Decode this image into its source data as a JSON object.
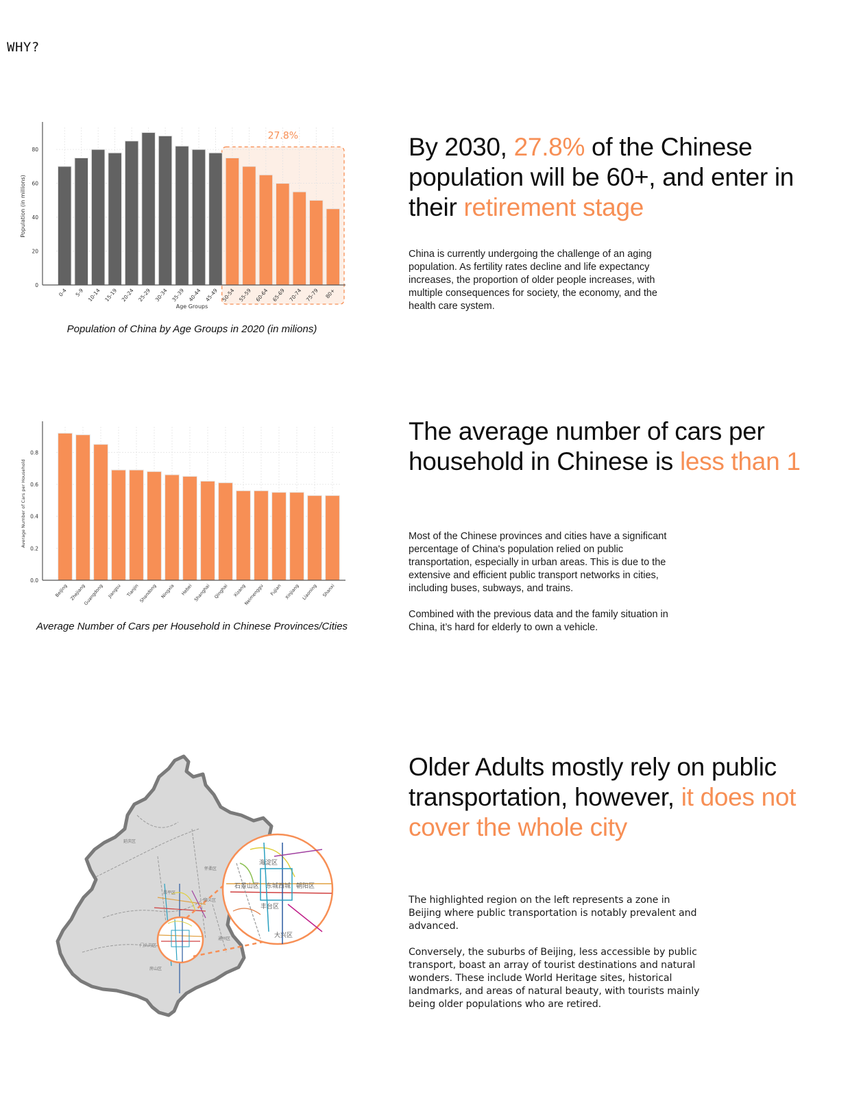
{
  "page": {
    "section_label": "WHY?"
  },
  "colors": {
    "accent": "#f78f55",
    "dark_bar": "#626262",
    "text": "#0d0d0d",
    "highlight_fill": "#fdefe6",
    "map_fill": "#d9d9d9",
    "map_outline": "#7a7a7a"
  },
  "section1": {
    "heading_parts": [
      {
        "text": "By 2030, ",
        "accent": false
      },
      {
        "text": "27.8%",
        "accent": true
      },
      {
        "text": " of the Chinese population will be 60+, and enter in their ",
        "accent": false
      },
      {
        "text": "retirement stage",
        "accent": true
      }
    ],
    "body": "China is currently undergoing the challenge of an aging population. As fertility rates decline and life expectancy increases, the proportion of older people increases, with multiple consequences for society, the economy, and the health care system.",
    "caption": "Population of China by Age Groups in 2020 (in milions)"
  },
  "section2": {
    "heading_parts": [
      {
        "text": "The average number of cars per household in Chinese is ",
        "accent": false
      },
      {
        "text": "less than 1",
        "accent": true
      }
    ],
    "body_paragraphs": [
      "Most of the Chinese provinces and cities have a significant percentage of China's population relied on public transportation, especially in urban areas. This is due to the extensive and efficient public transport networks in cities, including buses, subways, and trains.",
      "Combined with the previous data and the family situation in China, it’s hard for elderly to own a vehicle."
    ],
    "caption": "Average Number of Cars per Household in Chinese Provinces/Cities"
  },
  "section3": {
    "heading_parts": [
      {
        "text": "Older Adults mostly rely on public transportation, however, ",
        "accent": false
      },
      {
        "text": "it does not cover the whole city",
        "accent": true
      }
    ],
    "body_paragraphs": [
      "The highlighted region on the left represents a zone in Beijing where public transportation is notably prevalent and advanced.",
      "Conversely, the suburbs of Beijing, less accessible by public transport, boast an array of tourist destinations and natural wonders. These include World Heritage sites, historical landmarks, and areas of natural beauty, with tourists mainly being older populations who are retired."
    ],
    "map": {
      "alt": "Map of Beijing with the central transit zone highlighted and magnified",
      "district_labels": [
        "海淀区",
        "石景山区",
        "东城西城",
        "朝阳区",
        "丰台区",
        "大兴区",
        "门头沟区",
        "昌平区",
        "顺义区",
        "通州区",
        "房山区",
        "怀柔区",
        "延庆区"
      ]
    }
  },
  "chart_data": [
    {
      "type": "bar",
      "title": "Population of China by Age Groups in 2020 (in milions)",
      "xlabel": "Age Groups",
      "ylabel": "Population (in millions)",
      "categories": [
        "0-4",
        "5-9",
        "10-14",
        "15-19",
        "20-24",
        "25-29",
        "30-34",
        "35-39",
        "40-44",
        "45-49",
        "50-54",
        "55-59",
        "60-64",
        "65-69",
        "70-74",
        "75-79",
        "80+"
      ],
      "values": [
        70,
        75,
        80,
        78,
        85,
        90,
        88,
        82,
        80,
        78,
        75,
        70,
        65,
        60,
        55,
        50,
        45
      ],
      "highlight_from_index": 10,
      "highlight_label": "27.8%",
      "ylim": [
        0,
        93
      ],
      "yticks": [
        0,
        20,
        40,
        60,
        80
      ],
      "grid": true
    },
    {
      "type": "bar",
      "title": "Average Number of Cars per Household in Chinese Provinces/Cities",
      "xlabel": "",
      "ylabel": "Average Number of Cars per Household",
      "categories": [
        "Beijing",
        "Zhejiang",
        "Guangdong",
        "Jiangsu",
        "Tianjin",
        "Shandong",
        "Ningxia",
        "Hebei",
        "Shanghai",
        "Qinghai",
        "Xizang",
        "Neimenggu",
        "Fujian",
        "Xinjiang",
        "Liaoning",
        "Shanxi"
      ],
      "values": [
        0.92,
        0.91,
        0.85,
        0.69,
        0.69,
        0.68,
        0.66,
        0.65,
        0.62,
        0.61,
        0.56,
        0.56,
        0.55,
        0.55,
        0.53,
        0.53
      ],
      "ylim": [
        0,
        0.96
      ],
      "yticks": [
        0.0,
        0.2,
        0.4,
        0.6,
        0.8
      ],
      "grid": true
    }
  ]
}
